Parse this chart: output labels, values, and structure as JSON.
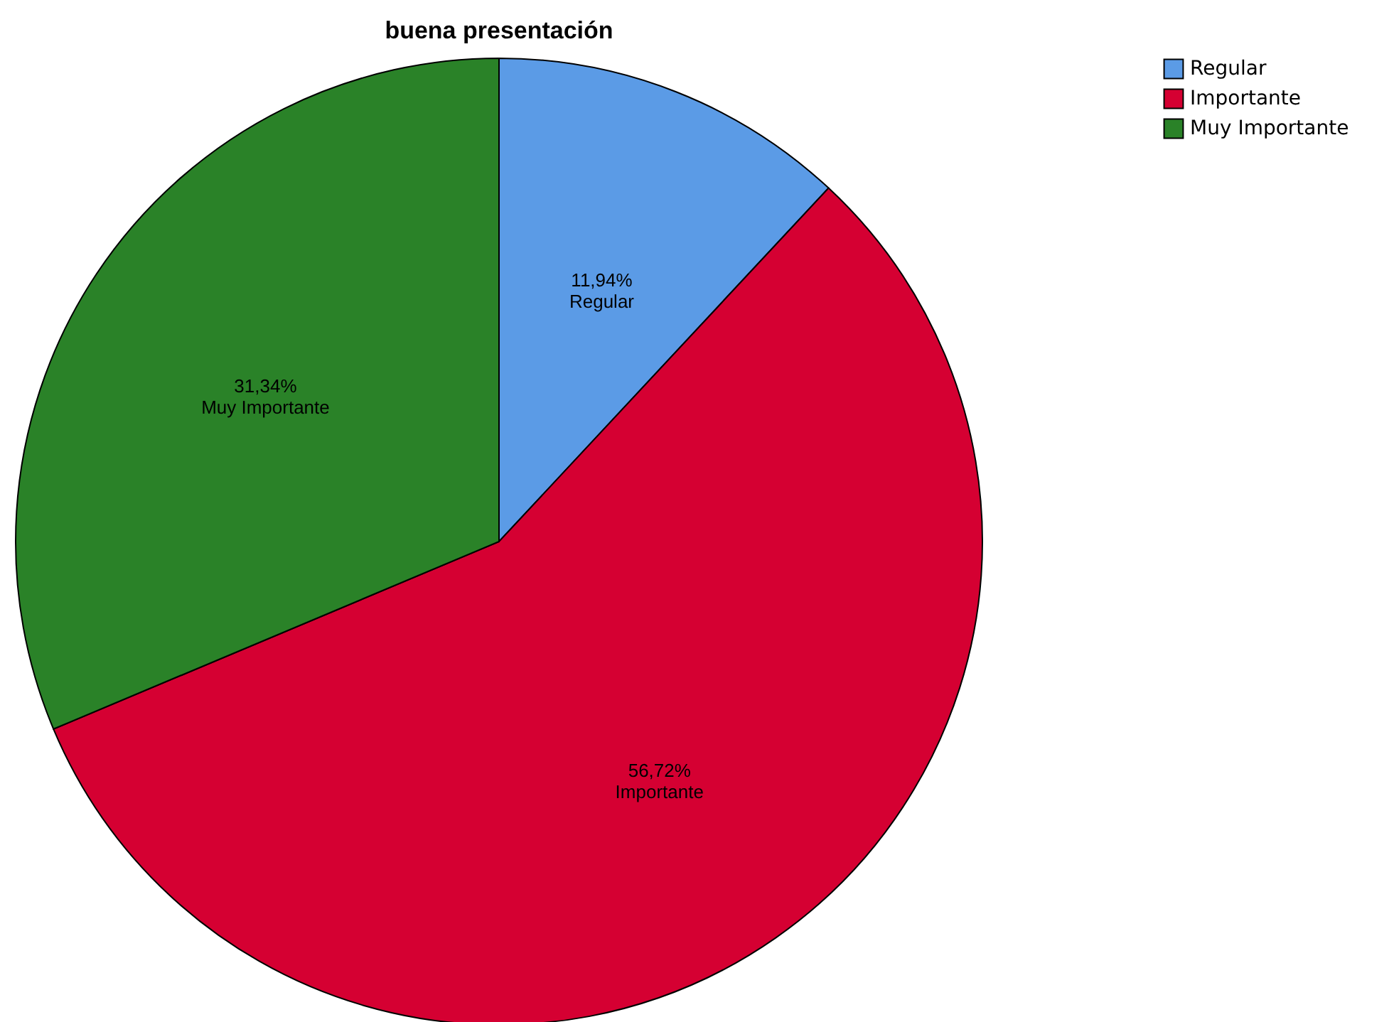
{
  "chart_data": {
    "type": "pie",
    "title": "buena presentación",
    "categories": [
      "Regular",
      "Importante",
      "Muy Importante"
    ],
    "values": [
      11.94,
      56.72,
      31.34
    ],
    "colors": [
      "#5b9be6",
      "#d50032",
      "#2a8228"
    ],
    "value_labels": [
      "11,94%",
      "56,72%",
      "31,34%"
    ],
    "legend": "top right"
  }
}
